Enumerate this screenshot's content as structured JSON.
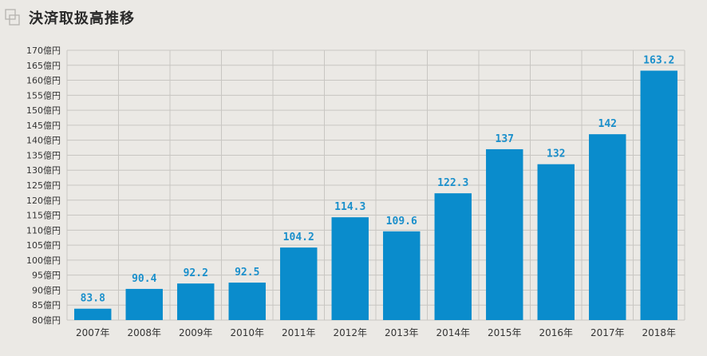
{
  "header": {
    "title": "決済取扱高推移",
    "icon": "overlapping-squares-icon"
  },
  "chart_data": {
    "type": "bar",
    "title": "決済取扱高推移",
    "categories": [
      "2007年",
      "2008年",
      "2009年",
      "2010年",
      "2011年",
      "2012年",
      "2013年",
      "2014年",
      "2015年",
      "2016年",
      "2017年",
      "2018年"
    ],
    "values": [
      83.8,
      90.4,
      92.2,
      92.5,
      104.2,
      114.3,
      109.6,
      122.3,
      137,
      132,
      142,
      163.2
    ],
    "data_labels": [
      "83.8",
      "90.4",
      "92.2",
      "92.5",
      "104.2",
      "114.3",
      "109.6",
      "122.3",
      "137",
      "132",
      "142",
      "163.2"
    ],
    "y_ticks": [
      "80億円",
      "85億円",
      "90億円",
      "95億円",
      "100億円",
      "105億円",
      "110億円",
      "115億円",
      "120億円",
      "125億円",
      "130億円",
      "135億円",
      "140億円",
      "145億円",
      "150億円",
      "155億円",
      "160億円",
      "165億円",
      "170億円"
    ],
    "ylim": [
      80,
      170
    ],
    "ytick_step": 5,
    "xlabel": "",
    "ylabel": "",
    "grid": true,
    "legend": "none",
    "bar_color": "#0a8ccc",
    "label_color": "#1a8fcb",
    "grid_color": "#c8c6c2"
  }
}
